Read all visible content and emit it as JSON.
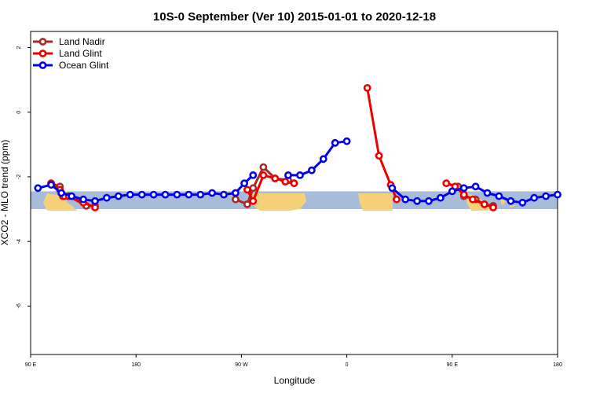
{
  "chart_data": {
    "type": "line",
    "title": "10S-0 September (Ver 10)   2015-01-01 to 2020-12-18",
    "xlabel": "Longitude",
    "ylabel": "XCO2 - MLO trend (ppm)",
    "xlim": [
      90,
      270
    ],
    "ylim": [
      -7.5,
      2.5
    ],
    "x_ticks": [
      {
        "value": 90,
        "label": "90 E"
      },
      {
        "value": 126,
        "label": "180"
      },
      {
        "value": 162,
        "label": "90 W"
      },
      {
        "value": 198,
        "label": "0"
      },
      {
        "value": 234,
        "label": "90 E"
      },
      {
        "value": 270,
        "label": "180"
      }
    ],
    "y_ticks": [
      {
        "value": 2,
        "label": "2"
      },
      {
        "value": 0,
        "label": "0"
      },
      {
        "value": -2,
        "label": "-2"
      },
      {
        "value": -4,
        "label": "-4"
      },
      {
        "value": -6,
        "label": "-6"
      }
    ],
    "grid": false,
    "legend_position": "top-left",
    "band": {
      "ymin": -3.0,
      "ymax": -2.45,
      "ocean_color": "#a7bcd9",
      "land_color": "#f5d27a"
    },
    "series": [
      {
        "name": "Land Nadir",
        "color": "#a52a2a",
        "segments": [
          [
            [
              97,
              -2.2
            ],
            [
              100,
              -2.3
            ],
            [
              101,
              -2.6
            ],
            [
              103,
              -2.6
            ],
            [
              109,
              -2.9
            ],
            [
              112,
              -2.9
            ]
          ],
          [
            [
              160,
              -2.7
            ],
            [
              164,
              -2.85
            ],
            [
              166,
              -2.35
            ],
            [
              169.5,
              -1.7
            ],
            [
              173.5,
              -2.05
            ],
            [
              178,
              -2.1
            ],
            [
              180,
              -2.2
            ]
          ],
          [
            [
              232,
              -2.2
            ],
            [
              236,
              -2.3
            ],
            [
              238,
              -2.6
            ],
            [
              242,
              -2.7
            ],
            [
              245,
              -2.85
            ],
            [
              248,
              -2.9
            ]
          ]
        ]
      },
      {
        "name": "Land Glint",
        "color": "#ee0000",
        "segments": [
          [
            [
              97,
              -2.2
            ],
            [
              100,
              -2.4
            ],
            [
              101.5,
              -2.6
            ],
            [
              103,
              -2.6
            ],
            [
              108,
              -2.8
            ],
            [
              112,
              -2.95
            ]
          ],
          [
            [
              164,
              -2.4
            ],
            [
              166,
              -2.75
            ],
            [
              169.5,
              -1.95
            ],
            [
              173.5,
              -2.05
            ],
            [
              177,
              -2.15
            ],
            [
              180,
              -2.2
            ]
          ],
          [
            [
              205,
              0.75
            ],
            [
              209,
              -1.35
            ],
            [
              213,
              -2.25
            ],
            [
              215,
              -2.7
            ]
          ],
          [
            [
              232,
              -2.2
            ],
            [
              235,
              -2.3
            ],
            [
              238,
              -2.55
            ],
            [
              241,
              -2.7
            ],
            [
              245,
              -2.85
            ],
            [
              248,
              -2.95
            ]
          ]
        ]
      },
      {
        "name": "Ocean Glint",
        "color": "#0000ee",
        "segments": [
          [
            [
              92.5,
              -2.35
            ],
            [
              97,
              -2.25
            ],
            [
              100.5,
              -2.5
            ],
            [
              104,
              -2.6
            ],
            [
              108,
              -2.7
            ],
            [
              112,
              -2.75
            ],
            [
              116,
              -2.65
            ],
            [
              120,
              -2.6
            ],
            [
              124,
              -2.55
            ],
            [
              128,
              -2.55
            ],
            [
              132,
              -2.55
            ],
            [
              136,
              -2.55
            ],
            [
              140,
              -2.55
            ],
            [
              144,
              -2.55
            ],
            [
              148,
              -2.55
            ],
            [
              152,
              -2.5
            ],
            [
              156,
              -2.55
            ],
            [
              160,
              -2.5
            ],
            [
              163,
              -2.2
            ],
            [
              166,
              -1.95
            ]
          ],
          [
            [
              178,
              -1.95
            ],
            [
              182,
              -1.95
            ],
            [
              186,
              -1.8
            ],
            [
              190,
              -1.45
            ],
            [
              194,
              -0.95
            ],
            [
              198,
              -0.9
            ]
          ],
          [
            [
              213.5,
              -2.35
            ],
            [
              218,
              -2.7
            ],
            [
              222,
              -2.75
            ],
            [
              226,
              -2.75
            ],
            [
              230,
              -2.65
            ],
            [
              234,
              -2.45
            ],
            [
              238,
              -2.35
            ],
            [
              242,
              -2.3
            ],
            [
              246,
              -2.5
            ],
            [
              250,
              -2.6
            ],
            [
              254,
              -2.75
            ],
            [
              258,
              -2.8
            ],
            [
              262,
              -2.65
            ],
            [
              266,
              -2.6
            ],
            [
              270,
              -2.55
            ]
          ]
        ]
      }
    ]
  }
}
